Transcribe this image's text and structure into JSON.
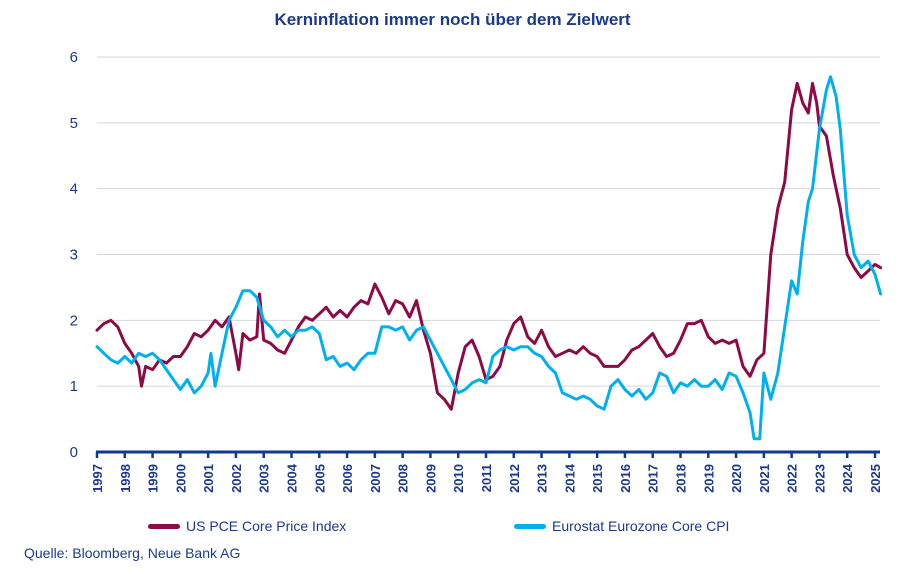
{
  "chart_data": {
    "type": "line",
    "title": "Kerninflation immer noch über dem Zielwert",
    "xlabel": "",
    "ylabel": "",
    "xlim": [
      1997,
      2025.2
    ],
    "ylim": [
      0,
      6
    ],
    "yticks": [
      "0",
      "1",
      "2",
      "3",
      "4",
      "5",
      "6"
    ],
    "xticks": [
      "1997",
      "1998",
      "1999",
      "2000",
      "2001",
      "2002",
      "2003",
      "2004",
      "2005",
      "2006",
      "2007",
      "2008",
      "2009",
      "2010",
      "2011",
      "2012",
      "2013",
      "2014",
      "2015",
      "2016",
      "2017",
      "2018",
      "2019",
      "2020",
      "2021",
      "2022",
      "2023",
      "2024",
      "2025"
    ],
    "grid": "horizontal",
    "legend_position": "bottom",
    "series": [
      {
        "name": "US PCE Core Price Index",
        "color": "#8c0a45",
        "points": [
          [
            1997.0,
            1.85
          ],
          [
            1997.25,
            1.95
          ],
          [
            1997.5,
            2.0
          ],
          [
            1997.75,
            1.9
          ],
          [
            1998.0,
            1.65
          ],
          [
            1998.25,
            1.5
          ],
          [
            1998.5,
            1.3
          ],
          [
            1998.6,
            1.0
          ],
          [
            1998.75,
            1.3
          ],
          [
            1999.0,
            1.25
          ],
          [
            1999.25,
            1.4
          ],
          [
            1999.5,
            1.35
          ],
          [
            1999.75,
            1.45
          ],
          [
            2000.0,
            1.45
          ],
          [
            2000.25,
            1.6
          ],
          [
            2000.5,
            1.8
          ],
          [
            2000.75,
            1.75
          ],
          [
            2001.0,
            1.85
          ],
          [
            2001.25,
            2.0
          ],
          [
            2001.5,
            1.9
          ],
          [
            2001.75,
            2.05
          ],
          [
            2002.0,
            1.5
          ],
          [
            2002.1,
            1.25
          ],
          [
            2002.25,
            1.8
          ],
          [
            2002.5,
            1.7
          ],
          [
            2002.75,
            1.75
          ],
          [
            2002.85,
            2.4
          ],
          [
            2003.0,
            1.7
          ],
          [
            2003.25,
            1.65
          ],
          [
            2003.5,
            1.55
          ],
          [
            2003.75,
            1.5
          ],
          [
            2004.0,
            1.7
          ],
          [
            2004.25,
            1.9
          ],
          [
            2004.5,
            2.05
          ],
          [
            2004.75,
            2.0
          ],
          [
            2005.0,
            2.1
          ],
          [
            2005.25,
            2.2
          ],
          [
            2005.5,
            2.05
          ],
          [
            2005.75,
            2.15
          ],
          [
            2006.0,
            2.05
          ],
          [
            2006.25,
            2.2
          ],
          [
            2006.5,
            2.3
          ],
          [
            2006.75,
            2.25
          ],
          [
            2007.0,
            2.55
          ],
          [
            2007.25,
            2.35
          ],
          [
            2007.5,
            2.1
          ],
          [
            2007.75,
            2.3
          ],
          [
            2008.0,
            2.25
          ],
          [
            2008.25,
            2.05
          ],
          [
            2008.5,
            2.3
          ],
          [
            2008.75,
            1.85
          ],
          [
            2009.0,
            1.5
          ],
          [
            2009.25,
            0.9
          ],
          [
            2009.5,
            0.8
          ],
          [
            2009.75,
            0.65
          ],
          [
            2010.0,
            1.2
          ],
          [
            2010.25,
            1.6
          ],
          [
            2010.5,
            1.7
          ],
          [
            2010.75,
            1.45
          ],
          [
            2011.0,
            1.1
          ],
          [
            2011.25,
            1.15
          ],
          [
            2011.5,
            1.3
          ],
          [
            2011.75,
            1.7
          ],
          [
            2012.0,
            1.95
          ],
          [
            2012.25,
            2.05
          ],
          [
            2012.5,
            1.75
          ],
          [
            2012.75,
            1.65
          ],
          [
            2013.0,
            1.85
          ],
          [
            2013.25,
            1.6
          ],
          [
            2013.5,
            1.45
          ],
          [
            2013.75,
            1.5
          ],
          [
            2014.0,
            1.55
          ],
          [
            2014.25,
            1.5
          ],
          [
            2014.5,
            1.6
          ],
          [
            2014.75,
            1.5
          ],
          [
            2015.0,
            1.45
          ],
          [
            2015.25,
            1.3
          ],
          [
            2015.5,
            1.3
          ],
          [
            2015.75,
            1.3
          ],
          [
            2016.0,
            1.4
          ],
          [
            2016.25,
            1.55
          ],
          [
            2016.5,
            1.6
          ],
          [
            2016.75,
            1.7
          ],
          [
            2017.0,
            1.8
          ],
          [
            2017.25,
            1.6
          ],
          [
            2017.5,
            1.45
          ],
          [
            2017.75,
            1.5
          ],
          [
            2018.0,
            1.7
          ],
          [
            2018.25,
            1.95
          ],
          [
            2018.5,
            1.95
          ],
          [
            2018.75,
            2.0
          ],
          [
            2019.0,
            1.75
          ],
          [
            2019.25,
            1.65
          ],
          [
            2019.5,
            1.7
          ],
          [
            2019.75,
            1.65
          ],
          [
            2020.0,
            1.7
          ],
          [
            2020.25,
            1.3
          ],
          [
            2020.5,
            1.15
          ],
          [
            2020.75,
            1.4
          ],
          [
            2021.0,
            1.5
          ],
          [
            2021.25,
            3.0
          ],
          [
            2021.5,
            3.7
          ],
          [
            2021.75,
            4.1
          ],
          [
            2022.0,
            5.2
          ],
          [
            2022.2,
            5.6
          ],
          [
            2022.4,
            5.3
          ],
          [
            2022.6,
            5.15
          ],
          [
            2022.75,
            5.6
          ],
          [
            2022.9,
            5.3
          ],
          [
            2023.0,
            4.95
          ],
          [
            2023.25,
            4.8
          ],
          [
            2023.5,
            4.2
          ],
          [
            2023.75,
            3.7
          ],
          [
            2024.0,
            3.0
          ],
          [
            2024.25,
            2.8
          ],
          [
            2024.5,
            2.65
          ],
          [
            2024.75,
            2.75
          ],
          [
            2025.0,
            2.85
          ],
          [
            2025.2,
            2.8
          ]
        ]
      },
      {
        "name": "Eurostat Eurozone Core CPI",
        "color": "#00b0ee",
        "points": [
          [
            1997.0,
            1.6
          ],
          [
            1997.25,
            1.5
          ],
          [
            1997.5,
            1.4
          ],
          [
            1997.75,
            1.35
          ],
          [
            1998.0,
            1.45
          ],
          [
            1998.25,
            1.35
          ],
          [
            1998.5,
            1.5
          ],
          [
            1998.75,
            1.45
          ],
          [
            1999.0,
            1.5
          ],
          [
            1999.25,
            1.4
          ],
          [
            1999.5,
            1.25
          ],
          [
            1999.75,
            1.1
          ],
          [
            2000.0,
            0.95
          ],
          [
            2000.25,
            1.1
          ],
          [
            2000.5,
            0.9
          ],
          [
            2000.75,
            1.0
          ],
          [
            2001.0,
            1.2
          ],
          [
            2001.1,
            1.5
          ],
          [
            2001.25,
            1.0
          ],
          [
            2001.5,
            1.5
          ],
          [
            2001.75,
            2.0
          ],
          [
            2002.0,
            2.2
          ],
          [
            2002.25,
            2.45
          ],
          [
            2002.5,
            2.45
          ],
          [
            2002.75,
            2.35
          ],
          [
            2003.0,
            2.0
          ],
          [
            2003.25,
            1.9
          ],
          [
            2003.5,
            1.75
          ],
          [
            2003.75,
            1.85
          ],
          [
            2004.0,
            1.75
          ],
          [
            2004.25,
            1.85
          ],
          [
            2004.5,
            1.85
          ],
          [
            2004.75,
            1.9
          ],
          [
            2005.0,
            1.8
          ],
          [
            2005.25,
            1.4
          ],
          [
            2005.5,
            1.45
          ],
          [
            2005.75,
            1.3
          ],
          [
            2006.0,
            1.35
          ],
          [
            2006.25,
            1.25
          ],
          [
            2006.5,
            1.4
          ],
          [
            2006.75,
            1.5
          ],
          [
            2007.0,
            1.5
          ],
          [
            2007.25,
            1.9
          ],
          [
            2007.5,
            1.9
          ],
          [
            2007.75,
            1.85
          ],
          [
            2008.0,
            1.9
          ],
          [
            2008.25,
            1.7
          ],
          [
            2008.5,
            1.85
          ],
          [
            2008.75,
            1.9
          ],
          [
            2009.0,
            1.7
          ],
          [
            2009.25,
            1.5
          ],
          [
            2009.5,
            1.3
          ],
          [
            2009.75,
            1.1
          ],
          [
            2010.0,
            0.9
          ],
          [
            2010.25,
            0.95
          ],
          [
            2010.5,
            1.05
          ],
          [
            2010.75,
            1.1
          ],
          [
            2011.0,
            1.05
          ],
          [
            2011.25,
            1.45
          ],
          [
            2011.5,
            1.55
          ],
          [
            2011.75,
            1.6
          ],
          [
            2012.0,
            1.55
          ],
          [
            2012.25,
            1.6
          ],
          [
            2012.5,
            1.6
          ],
          [
            2012.75,
            1.5
          ],
          [
            2013.0,
            1.45
          ],
          [
            2013.25,
            1.3
          ],
          [
            2013.5,
            1.2
          ],
          [
            2013.75,
            0.9
          ],
          [
            2014.0,
            0.85
          ],
          [
            2014.25,
            0.8
          ],
          [
            2014.5,
            0.85
          ],
          [
            2014.75,
            0.8
          ],
          [
            2015.0,
            0.7
          ],
          [
            2015.25,
            0.65
          ],
          [
            2015.5,
            1.0
          ],
          [
            2015.75,
            1.1
          ],
          [
            2016.0,
            0.95
          ],
          [
            2016.25,
            0.85
          ],
          [
            2016.5,
            0.95
          ],
          [
            2016.75,
            0.8
          ],
          [
            2017.0,
            0.9
          ],
          [
            2017.25,
            1.2
          ],
          [
            2017.5,
            1.15
          ],
          [
            2017.75,
            0.9
          ],
          [
            2018.0,
            1.05
          ],
          [
            2018.25,
            1.0
          ],
          [
            2018.5,
            1.1
          ],
          [
            2018.75,
            1.0
          ],
          [
            2019.0,
            1.0
          ],
          [
            2019.25,
            1.1
          ],
          [
            2019.5,
            0.95
          ],
          [
            2019.75,
            1.2
          ],
          [
            2020.0,
            1.15
          ],
          [
            2020.25,
            0.9
          ],
          [
            2020.5,
            0.6
          ],
          [
            2020.65,
            0.2
          ],
          [
            2020.85,
            0.2
          ],
          [
            2021.0,
            1.2
          ],
          [
            2021.25,
            0.8
          ],
          [
            2021.5,
            1.2
          ],
          [
            2021.75,
            1.9
          ],
          [
            2022.0,
            2.6
          ],
          [
            2022.2,
            2.4
          ],
          [
            2022.4,
            3.2
          ],
          [
            2022.6,
            3.8
          ],
          [
            2022.75,
            4.0
          ],
          [
            2023.0,
            4.9
          ],
          [
            2023.25,
            5.5
          ],
          [
            2023.4,
            5.7
          ],
          [
            2023.6,
            5.4
          ],
          [
            2023.75,
            4.9
          ],
          [
            2024.0,
            3.6
          ],
          [
            2024.25,
            3.0
          ],
          [
            2024.5,
            2.8
          ],
          [
            2024.75,
            2.9
          ],
          [
            2025.0,
            2.7
          ],
          [
            2025.2,
            2.4
          ]
        ]
      }
    ]
  },
  "legend": {
    "items": [
      {
        "label": "US PCE Core Price Index",
        "color": "#8c0a45"
      },
      {
        "label": "Eurostat Eurozone Core CPI",
        "color": "#00b0ee"
      }
    ]
  },
  "source": "Quelle: Bloomberg, Neue Bank AG"
}
